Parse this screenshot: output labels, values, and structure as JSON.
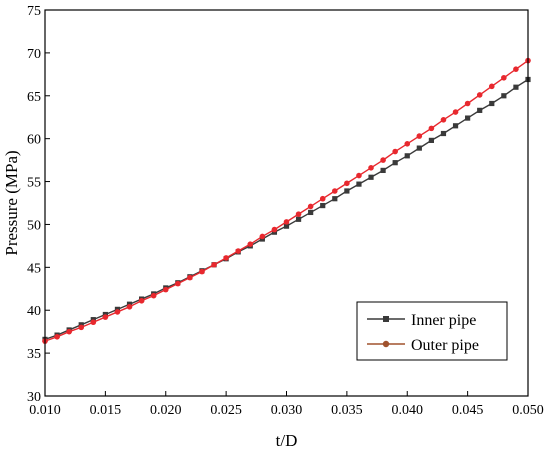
{
  "chart_data": {
    "type": "line",
    "xlabel": "t/D",
    "ylabel": "Pressure (MPa)",
    "xlim": [
      0.01,
      0.05
    ],
    "ylim": [
      30,
      75
    ],
    "x_ticks": [
      "0.010",
      "0.015",
      "0.020",
      "0.025",
      "0.030",
      "0.035",
      "0.040",
      "0.045",
      "0.050"
    ],
    "y_ticks": [
      "30",
      "35",
      "40",
      "45",
      "50",
      "55",
      "60",
      "65",
      "70",
      "75"
    ],
    "grid": false,
    "legend_position": "lower-right",
    "x": [
      0.01,
      0.011,
      0.012,
      0.013,
      0.014,
      0.015,
      0.016,
      0.017,
      0.018,
      0.019,
      0.02,
      0.021,
      0.022,
      0.023,
      0.024,
      0.025,
      0.026,
      0.027,
      0.028,
      0.029,
      0.03,
      0.031,
      0.032,
      0.033,
      0.034,
      0.035,
      0.036,
      0.037,
      0.038,
      0.039,
      0.04,
      0.041,
      0.042,
      0.043,
      0.044,
      0.045,
      0.046,
      0.047,
      0.048,
      0.049,
      0.05
    ],
    "series": [
      {
        "name": "Inner pipe",
        "color": "#3a3a3a",
        "marker": "square",
        "values": [
          36.6,
          37.1,
          37.7,
          38.3,
          38.9,
          39.5,
          40.1,
          40.7,
          41.3,
          41.9,
          42.6,
          43.2,
          43.9,
          44.6,
          45.3,
          46.0,
          46.8,
          47.5,
          48.3,
          49.1,
          49.8,
          50.6,
          51.4,
          52.2,
          53.0,
          53.9,
          54.7,
          55.5,
          56.3,
          57.2,
          58.0,
          58.9,
          59.8,
          60.6,
          61.5,
          62.4,
          63.3,
          64.1,
          65.0,
          66.0,
          66.9
        ]
      },
      {
        "name": "Outer pipe",
        "color": "#e8282e",
        "marker": "circle",
        "values": [
          36.4,
          36.9,
          37.5,
          38.0,
          38.6,
          39.2,
          39.8,
          40.4,
          41.1,
          41.7,
          42.4,
          43.1,
          43.8,
          44.5,
          45.3,
          46.1,
          46.9,
          47.7,
          48.6,
          49.4,
          50.3,
          51.2,
          52.1,
          53.0,
          53.9,
          54.8,
          55.7,
          56.6,
          57.5,
          58.5,
          59.4,
          60.3,
          61.2,
          62.2,
          63.1,
          64.1,
          65.1,
          66.1,
          67.1,
          68.1,
          69.1
        ]
      }
    ]
  }
}
